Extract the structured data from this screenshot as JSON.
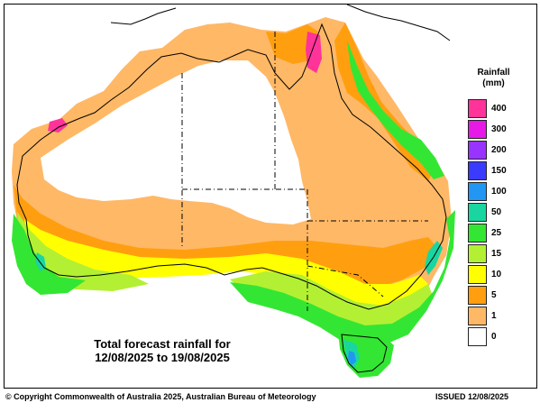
{
  "legend": {
    "title_line1": "Rainfall",
    "title_line2": "(mm)",
    "items": [
      {
        "label": "400",
        "color": "#ff3399"
      },
      {
        "label": "300",
        "color": "#e619e6"
      },
      {
        "label": "200",
        "color": "#9933ff"
      },
      {
        "label": "150",
        "color": "#3b3bff"
      },
      {
        "label": "100",
        "color": "#2196f3"
      },
      {
        "label": "50",
        "color": "#19d6a0"
      },
      {
        "label": "25",
        "color": "#33e633"
      },
      {
        "label": "15",
        "color": "#b3f033"
      },
      {
        "label": "10",
        "color": "#ffff00"
      },
      {
        "label": "5",
        "color": "#ff9f0f"
      },
      {
        "label": "1",
        "color": "#ffb866"
      },
      {
        "label": "0",
        "color": "#ffffff"
      }
    ]
  },
  "caption": {
    "line1": "Total forecast rainfall for",
    "line2": "12/08/2025 to 19/08/2025"
  },
  "footer": {
    "copyright": "© Copyright Commonwealth of Australia 2025, Australian Bureau of Meteorology",
    "issued": "ISSUED 12/08/2025"
  },
  "map": {
    "colors": {
      "band_0": "#ffffff",
      "band_1": "#ffb866",
      "band_5": "#ff9f0f",
      "band_10": "#ffff00",
      "band_15": "#b3f033",
      "band_25": "#33e633",
      "band_50": "#19d6a0",
      "band_100": "#2196f3",
      "band_400": "#ff3399"
    }
  }
}
